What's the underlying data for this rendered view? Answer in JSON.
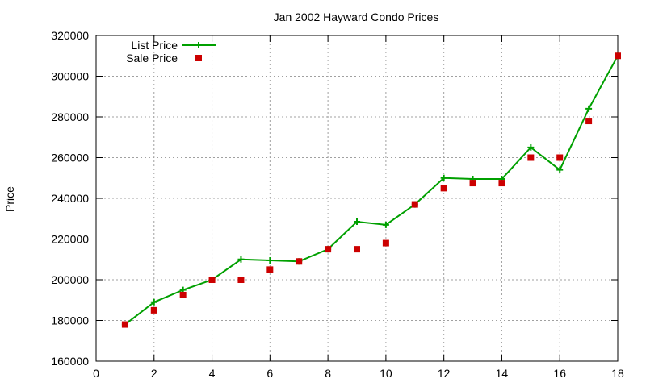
{
  "chart_data": {
    "type": "line",
    "title": "Jan 2002 Hayward Condo Prices",
    "xlabel": "",
    "ylabel": "Price",
    "xlim": [
      0,
      18
    ],
    "ylim": [
      160000,
      320000
    ],
    "xticks": [
      0,
      2,
      4,
      6,
      8,
      10,
      12,
      14,
      16,
      18
    ],
    "yticks": [
      160000,
      180000,
      200000,
      220000,
      240000,
      260000,
      280000,
      300000,
      320000
    ],
    "grid": true,
    "legend_position": "top-left",
    "series": [
      {
        "name": "List Price",
        "style": "line-with-plus-markers",
        "color": "#00a000",
        "x": [
          1,
          2,
          3,
          4,
          5,
          6,
          7,
          8,
          9,
          10,
          11,
          12,
          13,
          14,
          15,
          16,
          17,
          18
        ],
        "y": [
          178000,
          189000,
          195000,
          200000,
          210000,
          209500,
          209000,
          215000,
          228500,
          227000,
          237000,
          250000,
          249500,
          249500,
          265000,
          254000,
          284000,
          310000
        ]
      },
      {
        "name": "Sale Price",
        "style": "square-markers",
        "color": "#cc0000",
        "x": [
          1,
          2,
          3,
          4,
          5,
          6,
          7,
          8,
          9,
          10,
          11,
          12,
          13,
          14,
          15,
          16,
          17,
          18
        ],
        "y": [
          178000,
          185000,
          192500,
          200000,
          200000,
          205000,
          209000,
          215000,
          215000,
          218000,
          237000,
          245000,
          247500,
          247500,
          260000,
          260000,
          278000,
          310000
        ]
      }
    ]
  }
}
